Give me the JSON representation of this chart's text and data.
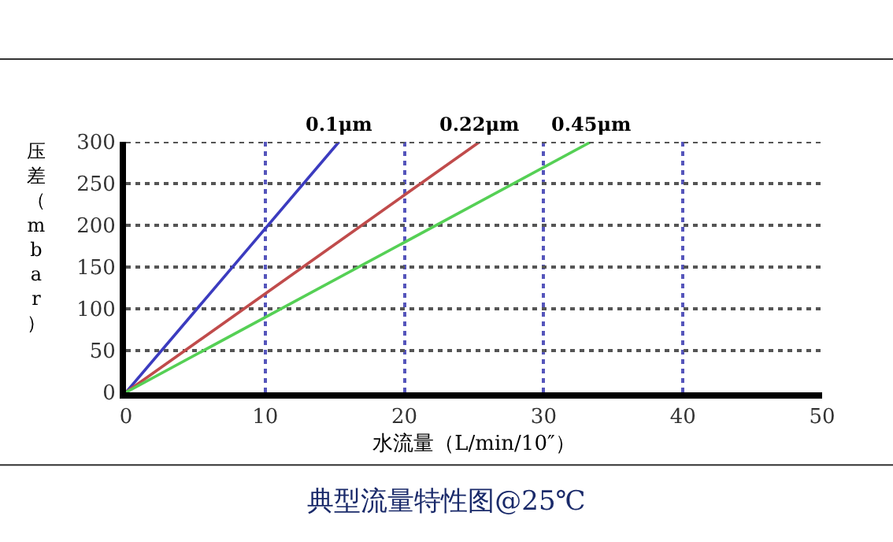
{
  "chart_data": {
    "type": "line",
    "title": "典型流量特性图@25℃",
    "xlabel": "水流量（L/min/10″）",
    "ylabel": "压差（mbar）",
    "xlim": [
      0,
      50
    ],
    "ylim": [
      0,
      300
    ],
    "xticks": [
      0,
      10,
      20,
      30,
      40,
      50
    ],
    "yticks": [
      0,
      50,
      100,
      150,
      200,
      250,
      300
    ],
    "grid": true,
    "legend": false,
    "marker": "none",
    "line_style": "solid",
    "series": [
      {
        "name": "0.1μm",
        "color": "#3b3bbf",
        "x": [
          0,
          15.3
        ],
        "values": [
          0,
          300
        ]
      },
      {
        "name": "0.22μm",
        "color": "#c04b4b",
        "x": [
          0,
          25.4
        ],
        "values": [
          0,
          300
        ]
      },
      {
        "name": "0.45μm",
        "color": "#55d055",
        "x": [
          0,
          33.4
        ],
        "values": [
          0,
          300
        ]
      }
    ]
  }
}
